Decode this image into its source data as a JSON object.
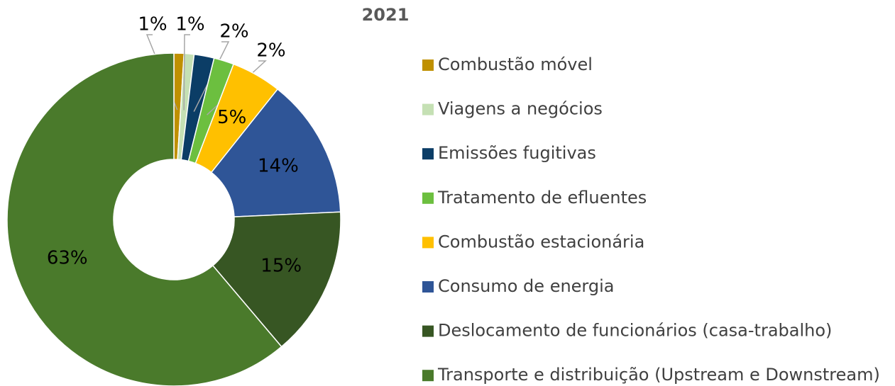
{
  "chart_data": {
    "type": "pie",
    "title": "2021",
    "donut": true,
    "categories": [
      "Combustão móvel",
      "Viagens a negócios",
      "Emissões fugitivas",
      "Tratamento de efluentes",
      "Combustão estacionária",
      "Consumo de energia",
      "Deslocamento de funcionários (casa-trabalho)",
      "Transporte e distribuição (Upstream e Downstream)"
    ],
    "values": [
      1,
      1,
      2,
      2,
      5,
      14,
      15,
      63
    ],
    "value_labels": [
      "1%",
      "1%",
      "2%",
      "2%",
      "5%",
      "14%",
      "15%",
      "63%"
    ],
    "colors": [
      "#bf9000",
      "#c5e0b4",
      "#0b3d66",
      "#6cbf3f",
      "#ffc000",
      "#2f5597",
      "#375623",
      "#4a7a2b"
    ]
  }
}
